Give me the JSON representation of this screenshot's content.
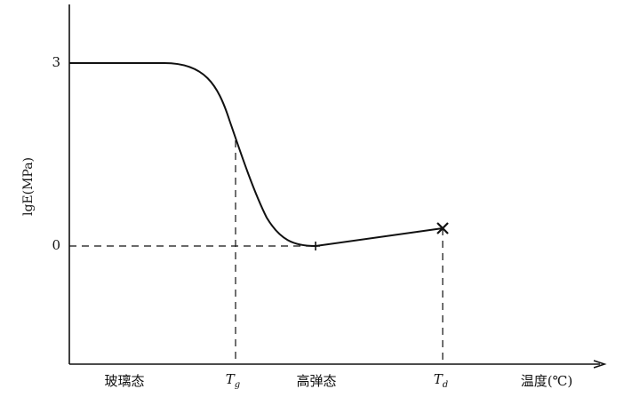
{
  "y_axis": {
    "label": "lgE(MPa)",
    "ticks": [
      "3",
      "0"
    ]
  },
  "x_axis": {
    "label": "温度(℃)"
  },
  "regions": [
    "玻璃态",
    "高弹态"
  ],
  "markers": [
    {
      "main": "T",
      "sub": "g"
    },
    {
      "main": "T",
      "sub": "d"
    }
  ]
}
